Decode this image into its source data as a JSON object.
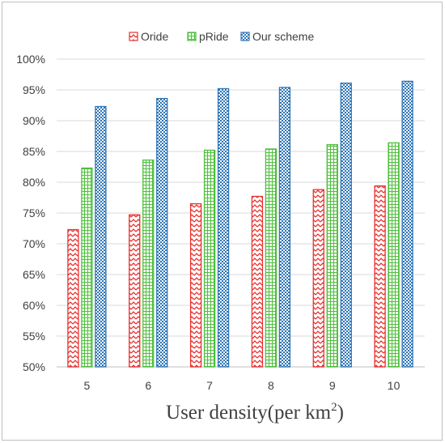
{
  "chart_data": {
    "type": "bar",
    "title": "",
    "xlabel": "User density(per km",
    "xlabel_sup": "2",
    "xlabel_end": ")",
    "ylabel": "",
    "categories": [
      "5",
      "6",
      "7",
      "8",
      "9",
      "10"
    ],
    "ylim": [
      50,
      100
    ],
    "yticks": [
      "50%",
      "55%",
      "60%",
      "65%",
      "70%",
      "75%",
      "80%",
      "85%",
      "90%",
      "95%",
      "100%"
    ],
    "grid": true,
    "legend_position": "top",
    "series": [
      {
        "name": "Oride",
        "color": "#e8312f",
        "pattern": "zigzag",
        "values": [
          72.3,
          74.7,
          76.5,
          77.7,
          78.8,
          79.4
        ]
      },
      {
        "name": "pRide",
        "color": "#4dbf3a",
        "pattern": "grid",
        "values": [
          82.3,
          83.6,
          85.2,
          85.4,
          86.1,
          86.4
        ]
      },
      {
        "name": "Our scheme",
        "color": "#2e75b6",
        "pattern": "checker",
        "values": [
          92.3,
          93.6,
          95.2,
          95.4,
          96.1,
          96.4
        ]
      }
    ]
  }
}
